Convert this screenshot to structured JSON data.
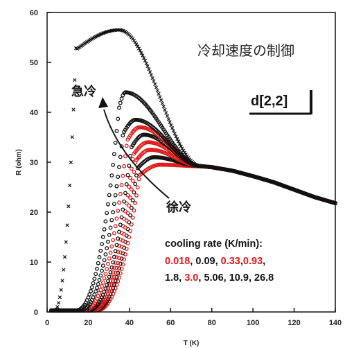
{
  "chart_data": {
    "type": "scatter",
    "title": "冷却速度の制御",
    "xlabel": "T (K)",
    "ylabel": "R (ohm)",
    "xlim": [
      0,
      140
    ],
    "ylim": [
      0,
      60
    ],
    "x_ticks": [
      "0",
      "20",
      "40",
      "60",
      "80",
      "100",
      "120",
      "140"
    ],
    "y_ticks": [
      "0",
      "10",
      "20",
      "30",
      "40",
      "50",
      "60"
    ],
    "grid": false,
    "labels": {
      "fast_cool": "急冷",
      "slow_cool": "徐冷",
      "sample": "d[2,2]"
    },
    "legend": {
      "heading": "cooling rate (K/min):",
      "lines": [
        [
          {
            "text": "0.018",
            "color": "#e21a1a"
          },
          {
            "text": ", 0.09, ",
            "color": "#111111"
          },
          {
            "text": "0.33",
            "color": "#e21a1a"
          },
          {
            "text": ",",
            "color": "#111111"
          },
          {
            "text": "0.93",
            "color": "#e21a1a"
          },
          {
            "text": ",",
            "color": "#111111"
          }
        ],
        [
          {
            "text": "1.8, ",
            "color": "#111111"
          },
          {
            "text": "3.0",
            "color": "#e21a1a"
          },
          {
            "text": ", 5.06, 10.9, 26.8",
            "color": "#111111"
          }
        ]
      ]
    },
    "series": [
      {
        "rate": "26.8",
        "color": "#111111",
        "marker": "x",
        "tc": 11,
        "peak": 56.5,
        "peakT": 35,
        "w": 1.5
      },
      {
        "rate": "10.9",
        "color": "#111111",
        "marker": "o",
        "tc": 29,
        "peak": 44.0,
        "peakT": 38,
        "w": 3.0
      },
      {
        "rate": "5.06",
        "color": "#111111",
        "marker": "o",
        "tc": 31,
        "peak": 38.5,
        "peakT": 43,
        "w": 3.0
      },
      {
        "rate": "3.0",
        "color": "#e21a1a",
        "marker": "o",
        "tc": 33,
        "peak": 37.0,
        "peakT": 45,
        "w": 3.0
      },
      {
        "rate": "1.8",
        "color": "#111111",
        "marker": "o",
        "tc": 35,
        "peak": 35.5,
        "peakT": 47,
        "w": 3.0
      },
      {
        "rate": "0.93",
        "color": "#e21a1a",
        "marker": "o",
        "tc": 36,
        "peak": 34.0,
        "peakT": 49,
        "w": 3.0
      },
      {
        "rate": "0.33",
        "color": "#e21a1a",
        "marker": "o",
        "tc": 37,
        "peak": 32.5,
        "peakT": 50,
        "w": 3.0
      },
      {
        "rate": "0.09",
        "color": "#111111",
        "marker": "o",
        "tc": 38,
        "peak": 31.0,
        "peakT": 52,
        "w": 3.0
      },
      {
        "rate": "0.018",
        "color": "#e21a1a",
        "marker": "o",
        "tc": 39,
        "peak": 29.5,
        "peakT": 55,
        "w": 3.0
      }
    ],
    "common_curve": [
      [
        75,
        29.2
      ],
      [
        80,
        29.0
      ],
      [
        90,
        28.3
      ],
      [
        100,
        27.2
      ],
      [
        110,
        26.0
      ],
      [
        120,
        24.5
      ],
      [
        130,
        23.0
      ],
      [
        140,
        21.8
      ]
    ]
  }
}
